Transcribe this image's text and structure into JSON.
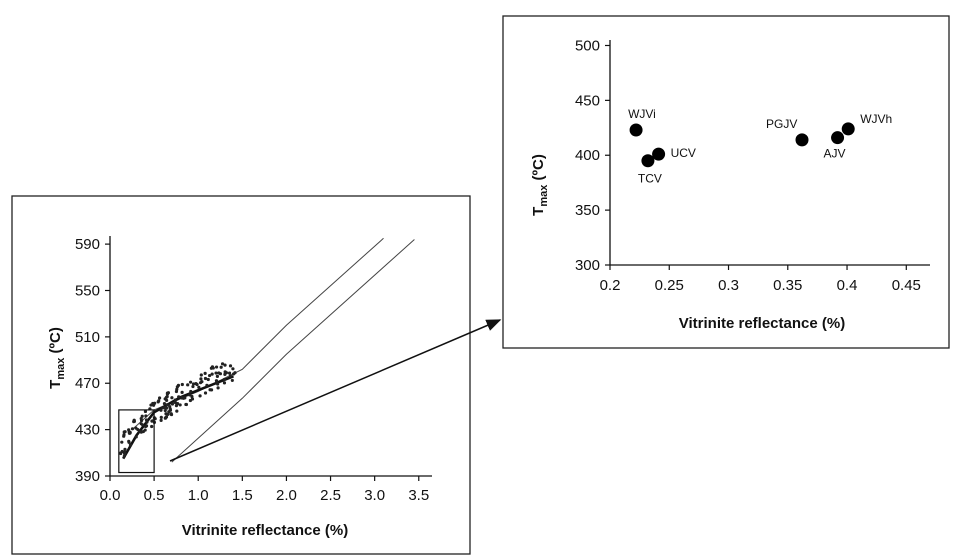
{
  "chart_data": [
    {
      "type": "scatter",
      "title": "",
      "xlabel": "Vitrinite reflectance (%)",
      "ylabel": {
        "base": "T",
        "sub": "max",
        "unit": " (ºC)"
      },
      "xlim": [
        0.0,
        3.65
      ],
      "ylim": [
        390,
        597
      ],
      "xticks": [
        "0.0",
        "0.5",
        "1.0",
        "1.5",
        "2.0",
        "2.5",
        "3.0",
        "3.5"
      ],
      "yticks": [
        "390",
        "430",
        "470",
        "510",
        "550",
        "590"
      ],
      "envelope": {
        "upper": [
          [
            0.25,
            430
          ],
          [
            0.5,
            447
          ],
          [
            1.0,
            463
          ],
          [
            1.5,
            482
          ],
          [
            2.0,
            520
          ],
          [
            3.1,
            595
          ]
        ],
        "lower": [
          [
            0.7,
            402
          ],
          [
            1.5,
            457
          ],
          [
            2.0,
            495
          ],
          [
            3.45,
            594
          ]
        ]
      },
      "trend": [
        [
          0.15,
          405
        ],
        [
          0.3,
          425
        ],
        [
          0.5,
          445
        ],
        [
          0.8,
          458
        ],
        [
          1.2,
          470
        ],
        [
          1.4,
          476
        ]
      ],
      "inset_box": {
        "x": [
          0.1,
          0.5
        ],
        "y": [
          393,
          447
        ]
      },
      "grid": false
    },
    {
      "type": "scatter",
      "title": "",
      "xlabel": "Vitrinite reflectance (%)",
      "ylabel": {
        "base": "T",
        "sub": "max",
        "unit": " (ºC)"
      },
      "xlim": [
        0.2,
        0.47
      ],
      "ylim": [
        300,
        505
      ],
      "xticks": [
        "0.2",
        "0.25",
        "0.3",
        "0.35",
        "0.4",
        "0.45"
      ],
      "yticks": [
        "300",
        "350",
        "400",
        "450",
        "500"
      ],
      "grid": false,
      "points": [
        {
          "label": "WJVi",
          "x": 0.222,
          "y": 423
        },
        {
          "label": "TCV",
          "x": 0.232,
          "y": 395
        },
        {
          "label": "UCV",
          "x": 0.241,
          "y": 401
        },
        {
          "label": "PGJV",
          "x": 0.362,
          "y": 414
        },
        {
          "label": "AJV",
          "x": 0.392,
          "y": 416
        },
        {
          "label": "WJVh",
          "x": 0.401,
          "y": 424
        }
      ]
    }
  ]
}
